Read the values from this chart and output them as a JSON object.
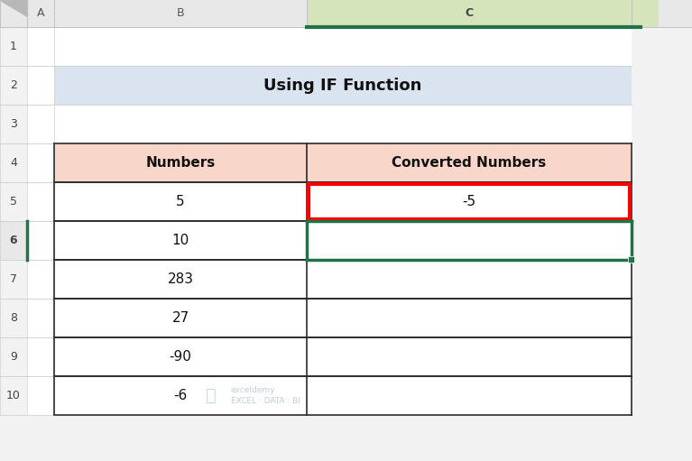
{
  "title": "Using IF Function",
  "title_bg": "#dae3f0",
  "col_header_bg": "#f8d7ca",
  "col_b_label": "Numbers",
  "col_c_label": "Converted Numbers",
  "numbers": [
    "5",
    "10",
    "283",
    "27",
    "-90",
    "-6"
  ],
  "converted": [
    "-5",
    "",
    "",
    "",
    "",
    ""
  ],
  "bg_color": "#f2f2f2",
  "cell_bg": "#ffffff",
  "col_hdr_bg": "#e8e8e8",
  "col_hdr_selected_bg": "#d6e4bc",
  "col_hdr_selected_border": "#4ea64e",
  "row_hdr_bg": "#f2f2f2",
  "row_hdr_selected_bg": "#e8e8e8",
  "row_hdr_selected_border": "#4ea64e",
  "grid_color": "#d0d0d0",
  "table_grid_color": "#2b2b2b",
  "red_border": "#ff0000",
  "green_border": "#217346",
  "watermark_color": "#b0c8d8",
  "fig_w": 7.67,
  "fig_h": 5.11,
  "dpi": 100
}
